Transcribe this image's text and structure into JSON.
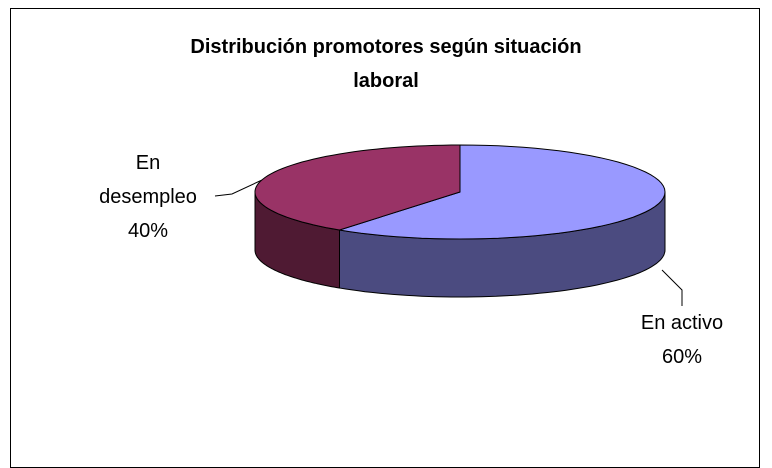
{
  "chart_data": {
    "type": "pie3d",
    "title": "Distribución promotores según situación laboral",
    "categories": [
      "En activo",
      "En desempleo"
    ],
    "values": [
      60,
      40
    ],
    "value_labels": [
      "60%",
      "40%"
    ],
    "colors": [
      "#9999ff",
      "#993366"
    ],
    "side_colors": [
      "#4b4b80",
      "#4f1a33"
    ]
  }
}
